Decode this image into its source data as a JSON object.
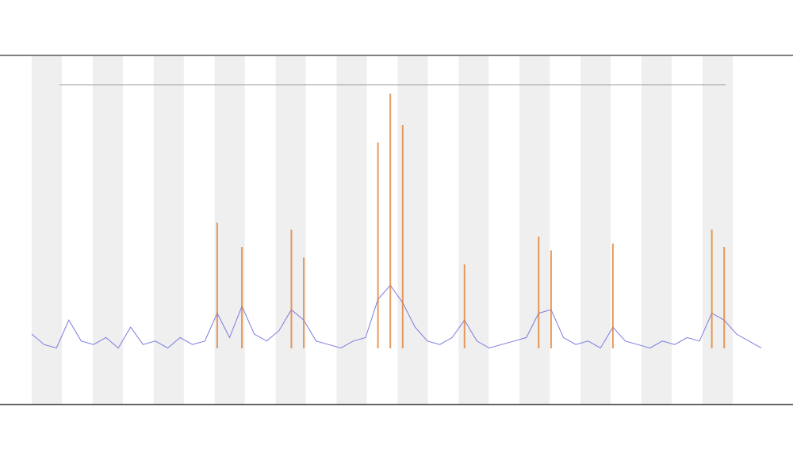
{
  "chart_data": {
    "type": "line",
    "ylim": [
      0,
      100
    ],
    "series": [
      {
        "color": "#7b7be0",
        "values": [
          20,
          17,
          16,
          24,
          18,
          17,
          19,
          16,
          22,
          17,
          18,
          16,
          19,
          17,
          18,
          26,
          19,
          28,
          20,
          18,
          21,
          27,
          24,
          18,
          17,
          16,
          18,
          19,
          30,
          34,
          29,
          22,
          18,
          17,
          19,
          24,
          18,
          16,
          17,
          18,
          19,
          26,
          27,
          19,
          17,
          18,
          16,
          22,
          18,
          17,
          16,
          18,
          17,
          19,
          18,
          26,
          24,
          20,
          18,
          16
        ]
      },
      {
        "color": "#e07a2a",
        "values": [
          null,
          null,
          null,
          null,
          null,
          null,
          null,
          null,
          null,
          null,
          null,
          null,
          null,
          null,
          null,
          52,
          null,
          45,
          null,
          null,
          null,
          50,
          42,
          null,
          null,
          null,
          null,
          null,
          75,
          89,
          80,
          null,
          null,
          null,
          null,
          40,
          null,
          null,
          null,
          null,
          null,
          48,
          44,
          null,
          null,
          null,
          null,
          46,
          null,
          null,
          null,
          null,
          null,
          null,
          null,
          50,
          45,
          null,
          null,
          null
        ]
      }
    ]
  }
}
